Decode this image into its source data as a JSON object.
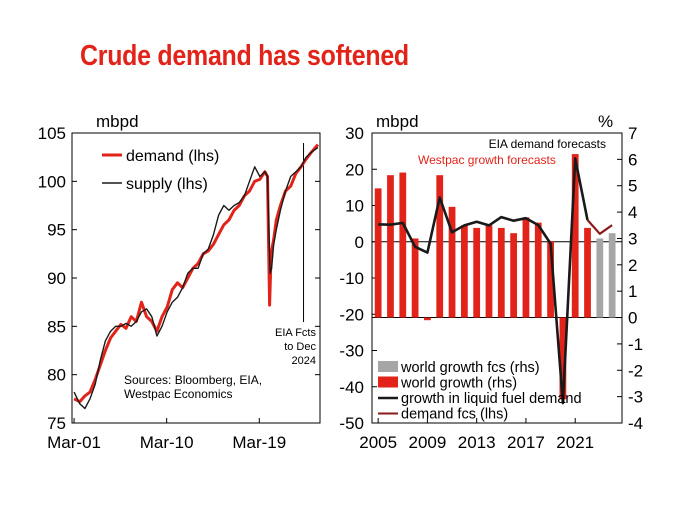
{
  "page_title": "Crude demand has softened",
  "colors": {
    "red": "#e2231a",
    "black": "#1a1a1a",
    "grey": "#a6a6a6",
    "darkred": "#8b1a1a"
  },
  "chart_data": [
    {
      "type": "line",
      "ylabel": "mbpd",
      "ylim": [
        75,
        105
      ],
      "yticks": [
        "75",
        "80",
        "85",
        "90",
        "95",
        "100",
        "105"
      ],
      "xticks": [
        "Mar-01",
        "Mar-10",
        "Mar-19"
      ],
      "annotation": [
        "EIA Fcts",
        "to Dec",
        "2024"
      ],
      "source_note": [
        "Sources: Bloomberg, EIA,",
        "Westpac Economics"
      ],
      "legend_position": "top-left",
      "series": [
        {
          "name": "demand (lhs)",
          "color": "#e2231a",
          "x": [
            2001.2,
            2001.75,
            2002.25,
            2002.75,
            2003.25,
            2003.75,
            2004.25,
            2004.75,
            2005.25,
            2005.75,
            2006.25,
            2006.75,
            2007.25,
            2007.75,
            2008.25,
            2008.75,
            2009.25,
            2009.75,
            2010.25,
            2010.75,
            2011.25,
            2011.75,
            2012.25,
            2012.75,
            2013.25,
            2013.75,
            2014.25,
            2014.75,
            2015.25,
            2015.75,
            2016.25,
            2016.75,
            2017.25,
            2017.75,
            2018.25,
            2018.75,
            2019.25,
            2019.75,
            2020.0,
            2020.2,
            2020.35,
            2020.6,
            2020.85,
            2021.25,
            2021.75,
            2022.25,
            2022.75,
            2023.25,
            2023.75,
            2024.25,
            2024.9
          ],
          "y": [
            77.5,
            77.2,
            77.8,
            78.2,
            79.5,
            81.0,
            82.5,
            83.8,
            84.5,
            85.2,
            84.8,
            86.0,
            85.5,
            87.5,
            86.0,
            85.5,
            84.5,
            86.0,
            87.0,
            88.8,
            89.5,
            89.0,
            90.0,
            91.0,
            91.5,
            92.5,
            92.8,
            93.5,
            94.5,
            95.5,
            96.0,
            97.0,
            97.5,
            98.5,
            99.0,
            100.0,
            100.2,
            101.0,
            100.5,
            87.2,
            92.5,
            94.0,
            96.0,
            97.5,
            99.0,
            99.5,
            100.8,
            101.5,
            102.3,
            103.0,
            103.8
          ]
        },
        {
          "name": "supply (lhs)",
          "color": "#1a1a1a",
          "x": [
            2001.2,
            2001.75,
            2002.25,
            2002.75,
            2003.25,
            2003.75,
            2004.25,
            2004.75,
            2005.25,
            2005.75,
            2006.25,
            2006.75,
            2007.25,
            2007.75,
            2008.25,
            2008.75,
            2009.25,
            2009.75,
            2010.25,
            2010.75,
            2011.25,
            2011.75,
            2012.25,
            2012.75,
            2013.25,
            2013.75,
            2014.25,
            2014.75,
            2015.25,
            2015.75,
            2016.25,
            2016.75,
            2017.25,
            2017.75,
            2018.25,
            2018.75,
            2019.25,
            2019.75,
            2020.0,
            2020.25,
            2020.4,
            2020.6,
            2020.85,
            2021.25,
            2021.75,
            2022.25,
            2022.75,
            2023.25,
            2023.75,
            2024.25,
            2024.9
          ],
          "y": [
            78.2,
            77.0,
            76.5,
            77.5,
            79.0,
            81.5,
            83.5,
            84.5,
            85.0,
            85.0,
            85.3,
            85.0,
            85.5,
            86.5,
            86.8,
            86.0,
            84.0,
            85.0,
            86.5,
            87.5,
            88.0,
            89.0,
            90.5,
            91.0,
            91.0,
            92.5,
            93.0,
            94.5,
            96.5,
            97.5,
            97.0,
            97.5,
            97.8,
            98.5,
            100.0,
            101.5,
            100.5,
            101.0,
            100.5,
            90.5,
            91.0,
            93.5,
            95.0,
            97.0,
            99.0,
            100.5,
            101.0,
            101.5,
            102.5,
            103.0,
            103.5
          ]
        }
      ]
    },
    {
      "type": "bar",
      "ylabel_left": "mbpd",
      "ylabel_right": "%",
      "ylim_left": [
        -50,
        30
      ],
      "ylim_right": [
        -4,
        7
      ],
      "yticks_left": [
        "-50",
        "-40",
        "-30",
        "-20",
        "-10",
        "0",
        "10",
        "20",
        "30"
      ],
      "yticks_right": [
        "-4",
        "-3",
        "-2",
        "-1",
        "0",
        "1",
        "2",
        "3",
        "4",
        "5",
        "6",
        "7"
      ],
      "xticks": [
        "2005",
        "2009",
        "2013",
        "2017",
        "2021"
      ],
      "annotations": [
        "EIA demand forecasts",
        "Westpac growth forecasts"
      ],
      "categories": [
        2005,
        2006,
        2007,
        2008,
        2009,
        2010,
        2011,
        2012,
        2013,
        2014,
        2015,
        2016,
        2017,
        2018,
        2019,
        2020,
        2021,
        2022,
        2023,
        2024
      ],
      "series": [
        {
          "name": "world growth (rhs)",
          "color": "#e2231a",
          "axis": "right",
          "values": [
            4.9,
            5.4,
            5.5,
            3.0,
            -0.1,
            5.4,
            4.2,
            3.5,
            3.4,
            3.5,
            3.4,
            3.2,
            3.8,
            3.6,
            2.9,
            -3.1,
            6.2,
            3.4,
            null,
            null
          ]
        },
        {
          "name": "world growth fcs (rhs)",
          "color": "#a6a6a6",
          "axis": "right",
          "values": [
            null,
            null,
            null,
            null,
            null,
            null,
            null,
            null,
            null,
            null,
            null,
            null,
            null,
            null,
            null,
            null,
            null,
            null,
            3.0,
            3.2
          ]
        },
        {
          "name": "growth in liquid fuel demand",
          "color": "#1a1a1a",
          "axis": "left",
          "values": [
            4.8,
            4.7,
            5.2,
            -1.4,
            -3.0,
            12.2,
            2.6,
            4.5,
            5.5,
            4.5,
            6.8,
            5.8,
            6.5,
            4.6,
            -0.5,
            -44.5,
            23.0,
            6.0,
            null,
            null
          ]
        },
        {
          "name": "demand fcs (lhs)",
          "color": "#8b1a1a",
          "axis": "left",
          "values": [
            null,
            null,
            null,
            null,
            null,
            null,
            null,
            null,
            null,
            null,
            null,
            null,
            null,
            null,
            null,
            null,
            null,
            6.0,
            2.2,
            4.6
          ]
        }
      ]
    }
  ]
}
